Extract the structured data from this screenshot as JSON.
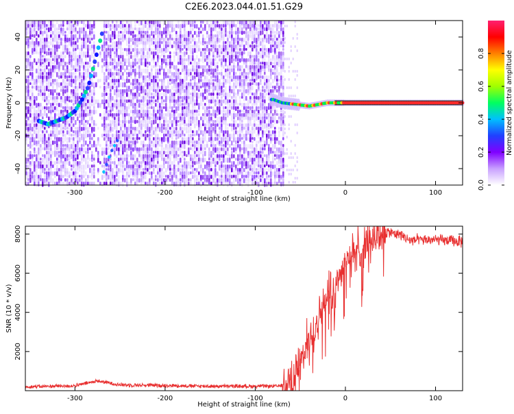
{
  "figure": {
    "title": "C2E6.2023.044.01.51.G29"
  },
  "chart_data": [
    {
      "type": "heatmap",
      "name": "spectrogram",
      "xlabel": "Height of straight line (km)",
      "ylabel": "Frequency (Hz)",
      "xlim": [
        -355,
        130
      ],
      "ylim": [
        -50,
        50
      ],
      "xticks": [
        -300,
        -200,
        -100,
        0,
        100
      ],
      "yticks": [
        -40,
        -20,
        0,
        20,
        40
      ],
      "colorbar": {
        "label": "Normalized spectral amplitude",
        "range": [
          0,
          1
        ],
        "ticks": [
          0.0,
          0.2,
          0.4,
          0.6,
          0.8
        ],
        "colors": [
          "#ffffff",
          "#c8a0ff",
          "#8000ff",
          "#2040ff",
          "#00c0ff",
          "#00ff60",
          "#a0ff00",
          "#ffff00",
          "#ff8000",
          "#ff0000",
          "#ff2070"
        ]
      },
      "noise_region_x": [
        -355,
        -68
      ],
      "signal_track": [
        {
          "x": -340,
          "y": -11
        },
        {
          "x": -330,
          "y": -13
        },
        {
          "x": -320,
          "y": -11
        },
        {
          "x": -310,
          "y": -9
        },
        {
          "x": -300,
          "y": -5
        },
        {
          "x": -292,
          "y": 2
        },
        {
          "x": -285,
          "y": 10
        },
        {
          "x": -278,
          "y": 25
        },
        {
          "x": -270,
          "y": 42
        }
      ],
      "alias_track": [
        {
          "x": -268,
          "y": -42
        },
        {
          "x": -260,
          "y": -30
        },
        {
          "x": -252,
          "y": -22
        }
      ],
      "tone_track": [
        {
          "x": -80,
          "y": 2
        },
        {
          "x": -70,
          "y": 0
        },
        {
          "x": -55,
          "y": -1
        },
        {
          "x": -40,
          "y": -2
        },
        {
          "x": -20,
          "y": 0
        },
        {
          "x": 0,
          "y": 0
        },
        {
          "x": 130,
          "y": 0
        }
      ]
    },
    {
      "type": "line",
      "name": "snr",
      "xlabel": "Height of straight line (km)",
      "ylabel": "SNR (10 * v/v)",
      "xlim": [
        -355,
        130
      ],
      "ylim": [
        0,
        8400
      ],
      "xticks": [
        -300,
        -200,
        -100,
        0,
        100
      ],
      "yticks": [
        2000,
        4000,
        6000,
        8000
      ],
      "color": "#e83030",
      "series_envelope": [
        {
          "x": -355,
          "y": 200
        },
        {
          "x": -300,
          "y": 250
        },
        {
          "x": -275,
          "y": 500
        },
        {
          "x": -250,
          "y": 300
        },
        {
          "x": -150,
          "y": 230
        },
        {
          "x": -75,
          "y": 230
        },
        {
          "x": -60,
          "y": 400
        },
        {
          "x": -50,
          "y": 1500
        },
        {
          "x": -40,
          "y": 2700
        },
        {
          "x": -30,
          "y": 3800
        },
        {
          "x": -20,
          "y": 4800
        },
        {
          "x": -10,
          "y": 5600
        },
        {
          "x": 0,
          "y": 6600
        },
        {
          "x": 10,
          "y": 7000
        },
        {
          "x": 20,
          "y": 7400
        },
        {
          "x": 30,
          "y": 7900
        },
        {
          "x": 45,
          "y": 8100
        },
        {
          "x": 60,
          "y": 8000
        },
        {
          "x": 70,
          "y": 7700
        },
        {
          "x": 100,
          "y": 7700
        },
        {
          "x": 130,
          "y": 7600
        }
      ]
    }
  ]
}
